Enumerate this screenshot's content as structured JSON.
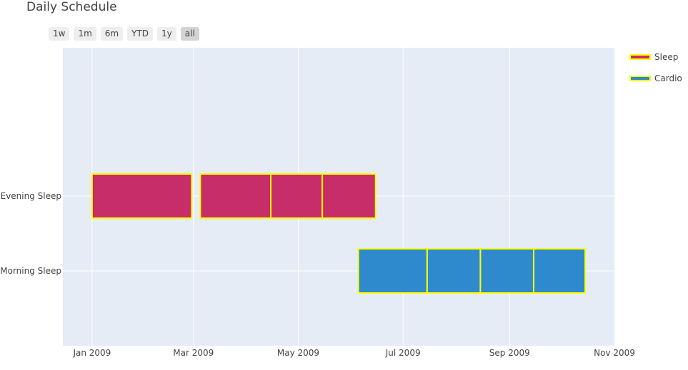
{
  "title": "Daily Schedule",
  "range_buttons": [
    {
      "label": "1w",
      "active": false
    },
    {
      "label": "1m",
      "active": false
    },
    {
      "label": "6m",
      "active": false
    },
    {
      "label": "YTD",
      "active": false
    },
    {
      "label": "1y",
      "active": false
    },
    {
      "label": "all",
      "active": true
    }
  ],
  "colors": {
    "plot_bg": "#e5ecf6",
    "grid": "#ffffff",
    "sleep": "#c62d69",
    "cardio": "#2e89cd",
    "outline": "#ffff00",
    "text": "#444444"
  },
  "chart_data": {
    "type": "gantt",
    "xlim": [
      "2008-12-15",
      "2009-11-01"
    ],
    "x_ticks": [
      {
        "date": "2009-01-01",
        "label": "Jan 2009"
      },
      {
        "date": "2009-03-01",
        "label": "Mar 2009"
      },
      {
        "date": "2009-05-01",
        "label": "May 2009"
      },
      {
        "date": "2009-07-01",
        "label": "Jul 2009"
      },
      {
        "date": "2009-09-01",
        "label": "Sep 2009"
      },
      {
        "date": "2009-11-01",
        "label": "Nov 2009"
      }
    ],
    "y_categories": [
      "Evening Sleep",
      "Morning Sleep"
    ],
    "legend": [
      {
        "name": "Sleep",
        "color": "#c62d69"
      },
      {
        "name": "Cardio",
        "color": "#2e89cd"
      }
    ],
    "legend_position": "top-right",
    "tasks": [
      {
        "task": "Evening Sleep",
        "start": "2009-01-01",
        "finish": "2009-02-28",
        "group": "Sleep"
      },
      {
        "task": "Evening Sleep",
        "start": "2009-03-05",
        "finish": "2009-04-15",
        "group": "Sleep"
      },
      {
        "task": "Evening Sleep",
        "start": "2009-04-15",
        "finish": "2009-05-15",
        "group": "Sleep"
      },
      {
        "task": "Evening Sleep",
        "start": "2009-05-15",
        "finish": "2009-06-15",
        "group": "Sleep"
      },
      {
        "task": "Morning Sleep",
        "start": "2009-06-05",
        "finish": "2009-07-15",
        "group": "Cardio"
      },
      {
        "task": "Morning Sleep",
        "start": "2009-07-15",
        "finish": "2009-08-15",
        "group": "Cardio"
      },
      {
        "task": "Morning Sleep",
        "start": "2009-08-15",
        "finish": "2009-09-15",
        "group": "Cardio"
      },
      {
        "task": "Morning Sleep",
        "start": "2009-09-15",
        "finish": "2009-10-15",
        "group": "Cardio"
      }
    ]
  }
}
